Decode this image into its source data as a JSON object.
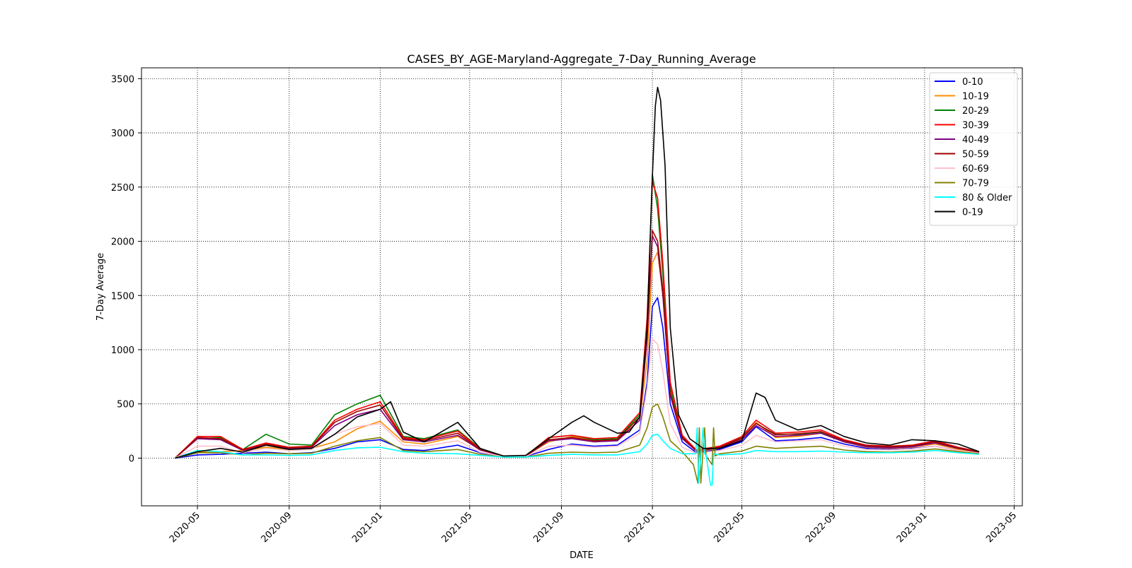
{
  "chart_data": {
    "type": "line",
    "title": "CASES_BY_AGE-Maryland-Aggregate_7-Day_Running_Average",
    "xlabel": "DATE",
    "ylabel": "7-Day Average",
    "xlim": [
      "2020-02-16",
      "2023-05-12"
    ],
    "ylim": [
      -440,
      3600
    ],
    "y_ticks": [
      0,
      500,
      1000,
      1500,
      2000,
      2500,
      3000,
      3500
    ],
    "x_ticks": [
      "2020-05",
      "2020-09",
      "2021-01",
      "2021-05",
      "2021-09",
      "2022-01",
      "2022-05",
      "2022-09",
      "2023-01",
      "2023-05"
    ],
    "grid": true,
    "legend_position": "upper right",
    "series": [
      {
        "name": "0-10",
        "color": "#0000ff",
        "x": [
          "2020-04-01",
          "2020-05-01",
          "2020-06-01",
          "2020-07-01",
          "2020-08-01",
          "2020-09-01",
          "2020-10-01",
          "2020-11-01",
          "2020-12-01",
          "2021-01-01",
          "2021-02-01",
          "2021-03-01",
          "2021-04-15",
          "2021-05-15",
          "2021-06-15",
          "2021-07-15",
          "2021-08-15",
          "2021-09-15",
          "2021-10-15",
          "2021-11-15",
          "2021-12-15",
          "2021-12-25",
          "2022-01-01",
          "2022-01-08",
          "2022-01-15",
          "2022-01-25",
          "2022-02-10",
          "2022-03-01",
          "2022-04-01",
          "2022-05-01",
          "2022-05-20",
          "2022-06-15",
          "2022-07-15",
          "2022-08-15",
          "2022-09-15",
          "2022-10-15",
          "2022-11-15",
          "2022-12-15",
          "2023-01-15",
          "2023-02-15",
          "2023-03-15"
        ],
        "y": [
          0,
          30,
          35,
          45,
          55,
          40,
          50,
          90,
          150,
          170,
          80,
          70,
          120,
          50,
          15,
          15,
          80,
          130,
          110,
          120,
          260,
          700,
          1400,
          1480,
          1200,
          500,
          150,
          50,
          80,
          150,
          290,
          160,
          170,
          190,
          130,
          90,
          80,
          90,
          110,
          70,
          45
        ]
      },
      {
        "name": "10-19",
        "color": "#ff8c00",
        "x": [
          "2020-04-01",
          "2020-05-01",
          "2020-06-01",
          "2020-07-01",
          "2020-08-01",
          "2020-09-01",
          "2020-10-01",
          "2020-11-01",
          "2020-12-01",
          "2021-01-01",
          "2021-02-01",
          "2021-03-01",
          "2021-04-15",
          "2021-05-15",
          "2021-06-15",
          "2021-07-15",
          "2021-08-15",
          "2021-09-15",
          "2021-10-15",
          "2021-11-15",
          "2021-12-15",
          "2021-12-25",
          "2022-01-01",
          "2022-01-08",
          "2022-01-15",
          "2022-01-25",
          "2022-02-10",
          "2022-03-01",
          "2022-04-01",
          "2022-05-01",
          "2022-05-20",
          "2022-06-15",
          "2022-07-15",
          "2022-08-15",
          "2022-09-15",
          "2022-10-15",
          "2022-11-15",
          "2022-12-15",
          "2023-01-15",
          "2023-02-15",
          "2023-03-15"
        ],
        "y": [
          0,
          60,
          60,
          70,
          100,
          80,
          90,
          150,
          270,
          340,
          150,
          130,
          200,
          80,
          20,
          20,
          150,
          200,
          160,
          170,
          350,
          900,
          1800,
          1900,
          1500,
          600,
          200,
          60,
          90,
          180,
          330,
          190,
          200,
          230,
          150,
          100,
          90,
          100,
          130,
          80,
          50
        ]
      },
      {
        "name": "20-29",
        "color": "#008000",
        "x": [
          "2020-04-01",
          "2020-05-01",
          "2020-06-01",
          "2020-07-01",
          "2020-08-01",
          "2020-09-01",
          "2020-10-01",
          "2020-11-01",
          "2020-12-01",
          "2021-01-01",
          "2021-02-01",
          "2021-03-01",
          "2021-04-15",
          "2021-05-15",
          "2021-06-15",
          "2021-07-15",
          "2021-08-15",
          "2021-09-15",
          "2021-10-15",
          "2021-11-15",
          "2021-12-15",
          "2021-12-25",
          "2022-01-01",
          "2022-01-08",
          "2022-01-15",
          "2022-01-25",
          "2022-02-10",
          "2022-03-01",
          "2022-04-01",
          "2022-05-01",
          "2022-05-20",
          "2022-06-15",
          "2022-07-15",
          "2022-08-15",
          "2022-09-15",
          "2022-10-15",
          "2022-11-15",
          "2022-12-15",
          "2023-01-15",
          "2023-02-15",
          "2023-03-15"
        ],
        "y": [
          0,
          180,
          190,
          80,
          220,
          130,
          120,
          400,
          500,
          580,
          200,
          180,
          260,
          90,
          20,
          20,
          190,
          210,
          170,
          180,
          400,
          1200,
          2620,
          2300,
          1700,
          650,
          200,
          70,
          100,
          190,
          320,
          220,
          220,
          240,
          160,
          110,
          100,
          110,
          140,
          90,
          55
        ]
      },
      {
        "name": "30-39",
        "color": "#ff0000",
        "x": [
          "2020-04-01",
          "2020-05-01",
          "2020-06-01",
          "2020-07-01",
          "2020-08-01",
          "2020-09-01",
          "2020-10-01",
          "2020-11-01",
          "2020-12-01",
          "2021-01-01",
          "2021-02-01",
          "2021-03-01",
          "2021-04-15",
          "2021-05-15",
          "2021-06-15",
          "2021-07-15",
          "2021-08-15",
          "2021-09-15",
          "2021-10-15",
          "2021-11-15",
          "2021-12-15",
          "2021-12-25",
          "2022-01-01",
          "2022-01-08",
          "2022-01-15",
          "2022-01-25",
          "2022-02-10",
          "2022-03-01",
          "2022-04-01",
          "2022-05-01",
          "2022-05-20",
          "2022-06-15",
          "2022-07-15",
          "2022-08-15",
          "2022-09-15",
          "2022-10-15",
          "2022-11-15",
          "2022-12-15",
          "2023-01-15",
          "2023-02-15",
          "2023-03-15"
        ],
        "y": [
          0,
          200,
          200,
          80,
          140,
          100,
          110,
          350,
          450,
          520,
          190,
          170,
          250,
          85,
          20,
          20,
          190,
          210,
          180,
          190,
          420,
          1300,
          2550,
          2400,
          1800,
          700,
          210,
          75,
          110,
          200,
          350,
          230,
          240,
          260,
          170,
          120,
          110,
          120,
          160,
          100,
          60
        ]
      },
      {
        "name": "40-49",
        "color": "#800080",
        "x": [
          "2020-04-01",
          "2020-05-01",
          "2020-06-01",
          "2020-07-01",
          "2020-08-01",
          "2020-09-01",
          "2020-10-01",
          "2020-11-01",
          "2020-12-01",
          "2021-01-01",
          "2021-02-01",
          "2021-03-01",
          "2021-04-15",
          "2021-05-15",
          "2021-06-15",
          "2021-07-15",
          "2021-08-15",
          "2021-09-15",
          "2021-10-15",
          "2021-11-15",
          "2021-12-15",
          "2021-12-25",
          "2022-01-01",
          "2022-01-08",
          "2022-01-15",
          "2022-01-25",
          "2022-02-10",
          "2022-03-01",
          "2022-04-01",
          "2022-05-01",
          "2022-05-20",
          "2022-06-15",
          "2022-07-15",
          "2022-08-15",
          "2022-09-15",
          "2022-10-15",
          "2022-11-15",
          "2022-12-15",
          "2023-01-15",
          "2023-02-15",
          "2023-03-15"
        ],
        "y": [
          0,
          180,
          170,
          70,
          120,
          90,
          100,
          300,
          400,
          450,
          170,
          150,
          210,
          75,
          18,
          18,
          160,
          180,
          150,
          160,
          350,
          1100,
          2050,
          1950,
          1500,
          580,
          180,
          65,
          95,
          170,
          300,
          200,
          210,
          230,
          150,
          105,
          95,
          105,
          140,
          90,
          55
        ]
      },
      {
        "name": "50-59",
        "color": "#a00000",
        "x": [
          "2020-04-01",
          "2020-05-01",
          "2020-06-01",
          "2020-07-01",
          "2020-08-01",
          "2020-09-01",
          "2020-10-01",
          "2020-11-01",
          "2020-12-01",
          "2021-01-01",
          "2021-02-01",
          "2021-03-01",
          "2021-04-15",
          "2021-05-15",
          "2021-06-15",
          "2021-07-15",
          "2021-08-15",
          "2021-09-15",
          "2021-10-15",
          "2021-11-15",
          "2021-12-15",
          "2021-12-25",
          "2022-01-01",
          "2022-01-08",
          "2022-01-15",
          "2022-01-25",
          "2022-02-10",
          "2022-03-01",
          "2022-04-01",
          "2022-05-01",
          "2022-05-20",
          "2022-06-15",
          "2022-07-15",
          "2022-08-15",
          "2022-09-15",
          "2022-10-15",
          "2022-11-15",
          "2022-12-15",
          "2023-01-15",
          "2023-02-15",
          "2023-03-15"
        ],
        "y": [
          0,
          190,
          180,
          75,
          130,
          95,
          105,
          330,
          430,
          490,
          180,
          160,
          230,
          80,
          19,
          19,
          170,
          190,
          160,
          170,
          380,
          1150,
          2100,
          2000,
          1550,
          600,
          190,
          70,
          100,
          185,
          320,
          215,
          225,
          245,
          160,
          115,
          105,
          115,
          150,
          95,
          58
        ]
      },
      {
        "name": "60-69",
        "color": "#ffc0cb",
        "x": [
          "2020-04-01",
          "2020-05-01",
          "2020-06-01",
          "2020-07-01",
          "2020-08-01",
          "2020-09-01",
          "2020-10-01",
          "2020-11-01",
          "2020-12-01",
          "2021-01-01",
          "2021-02-01",
          "2021-03-01",
          "2021-04-15",
          "2021-05-15",
          "2021-06-15",
          "2021-07-15",
          "2021-08-15",
          "2021-09-15",
          "2021-10-15",
          "2021-11-15",
          "2021-12-15",
          "2021-12-25",
          "2022-01-01",
          "2022-01-08",
          "2022-01-15",
          "2022-01-25",
          "2022-02-10",
          "2022-03-01",
          "2022-04-01",
          "2022-05-01",
          "2022-05-20",
          "2022-06-15",
          "2022-07-15",
          "2022-08-15",
          "2022-09-15",
          "2022-10-15",
          "2022-11-15",
          "2022-12-15",
          "2023-01-15",
          "2023-02-15",
          "2023-03-15"
        ],
        "y": [
          0,
          110,
          110,
          50,
          90,
          70,
          80,
          220,
          290,
          320,
          120,
          110,
          160,
          55,
          14,
          14,
          110,
          120,
          100,
          110,
          230,
          650,
          1100,
          1050,
          800,
          320,
          100,
          45,
          70,
          120,
          210,
          150,
          160,
          170,
          110,
          80,
          75,
          85,
          110,
          70,
          45
        ]
      },
      {
        "name": "70-79",
        "color": "#808000",
        "x": [
          "2020-04-01",
          "2020-05-01",
          "2020-06-01",
          "2020-07-01",
          "2020-08-01",
          "2020-09-01",
          "2020-10-01",
          "2020-11-01",
          "2020-12-01",
          "2021-01-01",
          "2021-02-01",
          "2021-03-01",
          "2021-04-15",
          "2021-05-15",
          "2021-06-15",
          "2021-07-15",
          "2021-08-15",
          "2021-09-15",
          "2021-10-15",
          "2021-11-15",
          "2021-12-15",
          "2021-12-25",
          "2022-01-01",
          "2022-01-08",
          "2022-01-15",
          "2022-01-25",
          "2022-02-10",
          "2022-02-25",
          "2022-03-03",
          "2022-03-05",
          "2022-03-07",
          "2022-03-12",
          "2022-03-14",
          "2022-03-22",
          "2022-03-24",
          "2022-03-26",
          "2022-04-01",
          "2022-05-01",
          "2022-05-20",
          "2022-06-15",
          "2022-07-15",
          "2022-08-15",
          "2022-09-15",
          "2022-10-15",
          "2022-11-15",
          "2022-12-15",
          "2023-01-15",
          "2023-02-15",
          "2023-03-15"
        ],
        "y": [
          0,
          50,
          50,
          30,
          45,
          40,
          45,
          110,
          160,
          190,
          70,
          60,
          80,
          35,
          10,
          10,
          45,
          55,
          50,
          55,
          120,
          280,
          470,
          500,
          380,
          160,
          60,
          -60,
          -230,
          280,
          -230,
          280,
          20,
          -60,
          280,
          20,
          40,
          65,
          110,
          90,
          100,
          110,
          75,
          60,
          55,
          65,
          85,
          60,
          40
        ]
      },
      {
        "name": "80 & Older",
        "color": "#00ffff",
        "x": [
          "2020-04-01",
          "2020-05-01",
          "2020-06-01",
          "2020-07-01",
          "2020-08-01",
          "2020-09-01",
          "2020-10-01",
          "2020-11-01",
          "2020-12-01",
          "2021-01-01",
          "2021-02-01",
          "2021-03-01",
          "2021-04-15",
          "2021-05-15",
          "2021-06-15",
          "2021-07-15",
          "2021-08-15",
          "2021-09-15",
          "2021-10-15",
          "2021-11-15",
          "2021-12-15",
          "2021-12-25",
          "2022-01-01",
          "2022-01-08",
          "2022-01-15",
          "2022-01-25",
          "2022-02-10",
          "2022-02-28",
          "2022-03-02",
          "2022-03-04",
          "2022-03-10",
          "2022-03-12",
          "2022-03-14",
          "2022-03-20",
          "2022-03-22",
          "2022-03-24",
          "2022-04-01",
          "2022-05-01",
          "2022-05-20",
          "2022-06-15",
          "2022-07-15",
          "2022-08-15",
          "2022-09-15",
          "2022-10-15",
          "2022-11-15",
          "2022-12-15",
          "2023-01-15",
          "2023-02-15",
          "2023-03-15"
        ],
        "y": [
          0,
          70,
          60,
          30,
          30,
          25,
          30,
          70,
          95,
          100,
          60,
          45,
          40,
          25,
          10,
          10,
          25,
          35,
          30,
          30,
          60,
          130,
          210,
          220,
          160,
          90,
          40,
          40,
          280,
          -230,
          280,
          40,
          30,
          -250,
          -250,
          40,
          30,
          40,
          70,
          60,
          60,
          65,
          55,
          50,
          50,
          55,
          70,
          50,
          35
        ]
      },
      {
        "name": "0-19",
        "color": "#000000",
        "x": [
          "2020-04-01",
          "2020-05-01",
          "2020-06-01",
          "2020-07-01",
          "2020-08-01",
          "2020-09-01",
          "2020-10-01",
          "2020-11-01",
          "2020-12-01",
          "2021-01-01",
          "2021-01-15",
          "2021-02-01",
          "2021-03-01",
          "2021-04-15",
          "2021-05-15",
          "2021-06-15",
          "2021-07-15",
          "2021-08-15",
          "2021-09-15",
          "2021-10-01",
          "2021-10-15",
          "2021-11-15",
          "2021-12-01",
          "2021-12-15",
          "2021-12-25",
          "2022-01-01",
          "2022-01-05",
          "2022-01-08",
          "2022-01-12",
          "2022-01-18",
          "2022-01-25",
          "2022-02-05",
          "2022-02-20",
          "2022-03-10",
          "2022-04-01",
          "2022-05-01",
          "2022-05-20",
          "2022-06-01",
          "2022-06-15",
          "2022-07-15",
          "2022-08-15",
          "2022-09-15",
          "2022-10-15",
          "2022-11-15",
          "2022-12-15",
          "2023-01-15",
          "2023-02-15",
          "2023-03-15"
        ],
        "y": [
          0,
          60,
          90,
          55,
          120,
          80,
          90,
          220,
          380,
          450,
          520,
          240,
          150,
          330,
          90,
          20,
          25,
          180,
          330,
          390,
          330,
          230,
          240,
          380,
          1200,
          2600,
          3250,
          3420,
          3300,
          2700,
          1200,
          400,
          180,
          90,
          90,
          160,
          600,
          560,
          350,
          260,
          300,
          200,
          140,
          120,
          170,
          160,
          130,
          60
        ]
      }
    ]
  }
}
